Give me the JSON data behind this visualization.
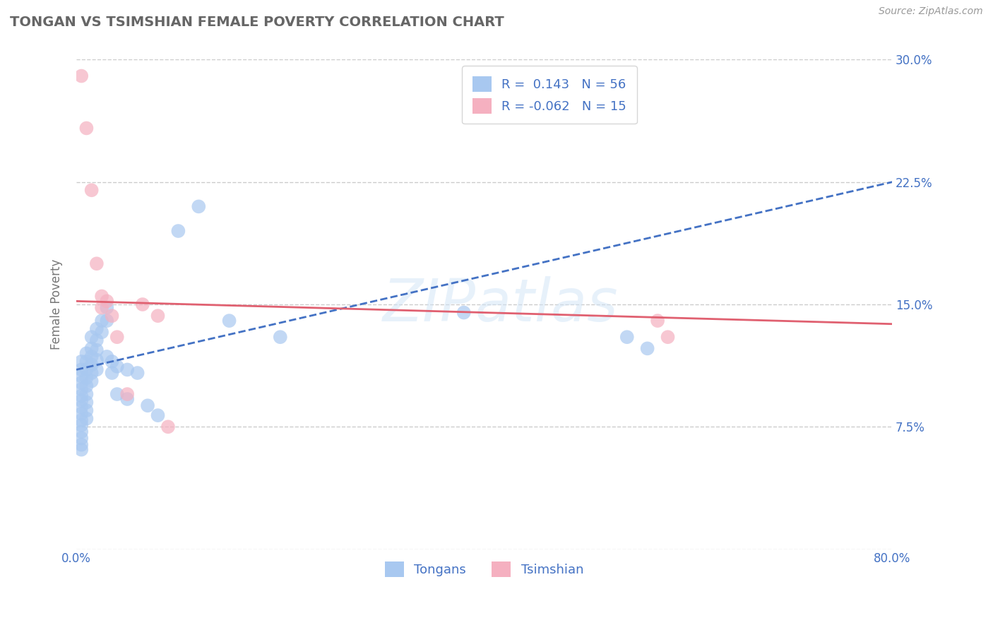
{
  "title": "TONGAN VS TSIMSHIAN FEMALE POVERTY CORRELATION CHART",
  "source_text": "Source: ZipAtlas.com",
  "ylabel": "Female Poverty",
  "xlim": [
    0.0,
    0.8
  ],
  "ylim": [
    0.0,
    0.3
  ],
  "grid_color": "#cccccc",
  "background_color": "#ffffff",
  "tongan_color": "#a8c8f0",
  "tsimshian_color": "#f5b0c0",
  "tongan_line_color": "#4472c4",
  "tsimshian_line_color": "#e06070",
  "r_tongan": 0.143,
  "n_tongan": 56,
  "r_tsimshian": -0.062,
  "n_tsimshian": 15,
  "label_color": "#4472c4",
  "watermark": "ZIPatlas",
  "tongan_points": [
    [
      0.005,
      0.115
    ],
    [
      0.005,
      0.11
    ],
    [
      0.005,
      0.106
    ],
    [
      0.005,
      0.102
    ],
    [
      0.005,
      0.098
    ],
    [
      0.005,
      0.094
    ],
    [
      0.005,
      0.091
    ],
    [
      0.005,
      0.087
    ],
    [
      0.005,
      0.083
    ],
    [
      0.005,
      0.079
    ],
    [
      0.005,
      0.076
    ],
    [
      0.005,
      0.072
    ],
    [
      0.005,
      0.068
    ],
    [
      0.005,
      0.064
    ],
    [
      0.005,
      0.061
    ],
    [
      0.01,
      0.12
    ],
    [
      0.01,
      0.115
    ],
    [
      0.01,
      0.11
    ],
    [
      0.01,
      0.105
    ],
    [
      0.01,
      0.1
    ],
    [
      0.01,
      0.095
    ],
    [
      0.01,
      0.09
    ],
    [
      0.01,
      0.085
    ],
    [
      0.01,
      0.08
    ],
    [
      0.015,
      0.13
    ],
    [
      0.015,
      0.123
    ],
    [
      0.015,
      0.118
    ],
    [
      0.015,
      0.113
    ],
    [
      0.015,
      0.108
    ],
    [
      0.015,
      0.103
    ],
    [
      0.02,
      0.135
    ],
    [
      0.02,
      0.128
    ],
    [
      0.02,
      0.122
    ],
    [
      0.02,
      0.116
    ],
    [
      0.02,
      0.11
    ],
    [
      0.025,
      0.14
    ],
    [
      0.025,
      0.133
    ],
    [
      0.03,
      0.148
    ],
    [
      0.03,
      0.14
    ],
    [
      0.03,
      0.118
    ],
    [
      0.035,
      0.115
    ],
    [
      0.035,
      0.108
    ],
    [
      0.04,
      0.112
    ],
    [
      0.04,
      0.095
    ],
    [
      0.05,
      0.11
    ],
    [
      0.05,
      0.092
    ],
    [
      0.06,
      0.108
    ],
    [
      0.07,
      0.088
    ],
    [
      0.08,
      0.082
    ],
    [
      0.1,
      0.195
    ],
    [
      0.12,
      0.21
    ],
    [
      0.15,
      0.14
    ],
    [
      0.2,
      0.13
    ],
    [
      0.38,
      0.145
    ],
    [
      0.54,
      0.13
    ],
    [
      0.56,
      0.123
    ]
  ],
  "tsimshian_points": [
    [
      0.005,
      0.29
    ],
    [
      0.01,
      0.258
    ],
    [
      0.015,
      0.22
    ],
    [
      0.02,
      0.175
    ],
    [
      0.025,
      0.155
    ],
    [
      0.025,
      0.148
    ],
    [
      0.03,
      0.152
    ],
    [
      0.035,
      0.143
    ],
    [
      0.04,
      0.13
    ],
    [
      0.05,
      0.095
    ],
    [
      0.065,
      0.15
    ],
    [
      0.08,
      0.143
    ],
    [
      0.09,
      0.075
    ],
    [
      0.57,
      0.14
    ],
    [
      0.58,
      0.13
    ]
  ]
}
